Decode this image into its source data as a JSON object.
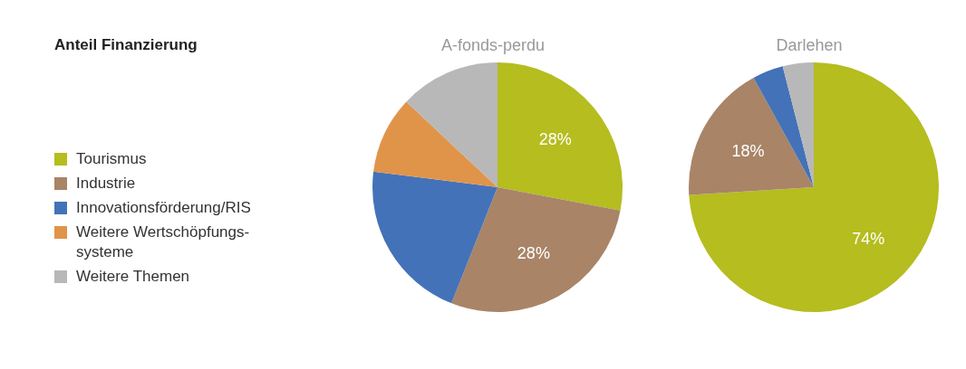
{
  "chart_data": [
    {
      "type": "pie",
      "title": "A-fonds-perdu",
      "legend_title": "Anteil Finanzierung",
      "legend": "left",
      "categories": [
        "Tourismus",
        "Industrie",
        "Innovationsförderung/RIS",
        "Weitere Wertschöpfungs-systeme",
        "Weitere Themen"
      ],
      "values": [
        28,
        28,
        21,
        10,
        13
      ],
      "colors": [
        "#b5bd1f",
        "#a98467",
        "#4472b8",
        "#e0944a",
        "#b8b8b8"
      ],
      "value_labels": [
        "28%",
        "28%",
        null,
        null,
        null
      ]
    },
    {
      "type": "pie",
      "title": "Darlehen",
      "legend": false,
      "categories": [
        null,
        null,
        null,
        null
      ],
      "values": [
        74,
        18,
        4,
        4
      ],
      "colors": [
        "#b5bd1f",
        "#a98467",
        "#4472b8",
        "#b8b8b8"
      ],
      "value_labels": [
        "74%",
        "18%",
        null,
        null
      ]
    }
  ]
}
